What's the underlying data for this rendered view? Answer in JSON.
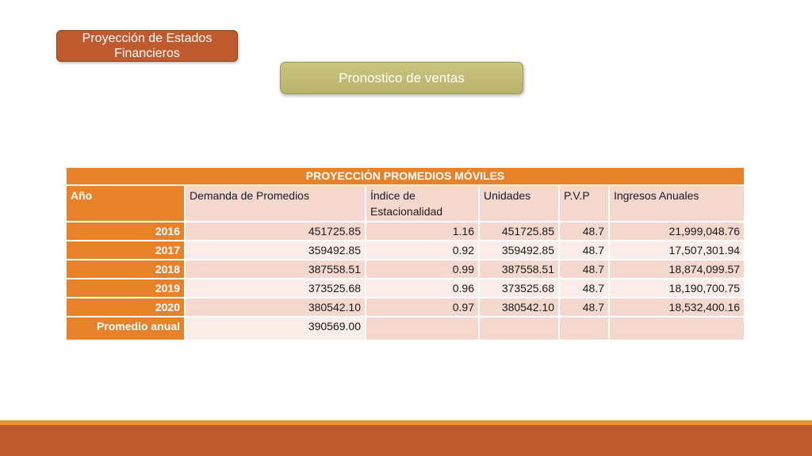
{
  "header": {
    "title": "Proyección de Estados Financieros",
    "subtitle": "Pronostico de ventas"
  },
  "table": {
    "caption": "PROYECCIÓN PROMEDIOS MÓVILES",
    "columns": [
      "Año",
      "Demanda de Promedios",
      "Índice de Estacionalidad",
      "Unidades",
      "P.V.P",
      "Ingresos Anuales"
    ],
    "rows": [
      [
        "2016",
        "451725.85",
        "1.16",
        "451725.85",
        "48.7",
        "21,999,048.76"
      ],
      [
        "2017",
        "359492.85",
        "0.92",
        "359492.85",
        "48.7",
        "17,507,301.94"
      ],
      [
        "2018",
        "387558.51",
        "0.99",
        "387558.51",
        "48.7",
        "18,874,099.57"
      ],
      [
        "2019",
        "373525.68",
        "0.96",
        "373525.68",
        "48.7",
        "18,190,700.75"
      ],
      [
        "2020",
        "380542.10",
        "0.97",
        "380542.10",
        "48.7",
        "18,532,400.16"
      ]
    ],
    "summary_label": "Promedio anual",
    "summary_value": "390569.00"
  },
  "colors": {
    "accent_orange": "#e8822a",
    "brand_rust": "#bf5a2e",
    "olive": "#c0ba74",
    "row_pink": "#f4d8ce",
    "row_light": "#faece7"
  }
}
